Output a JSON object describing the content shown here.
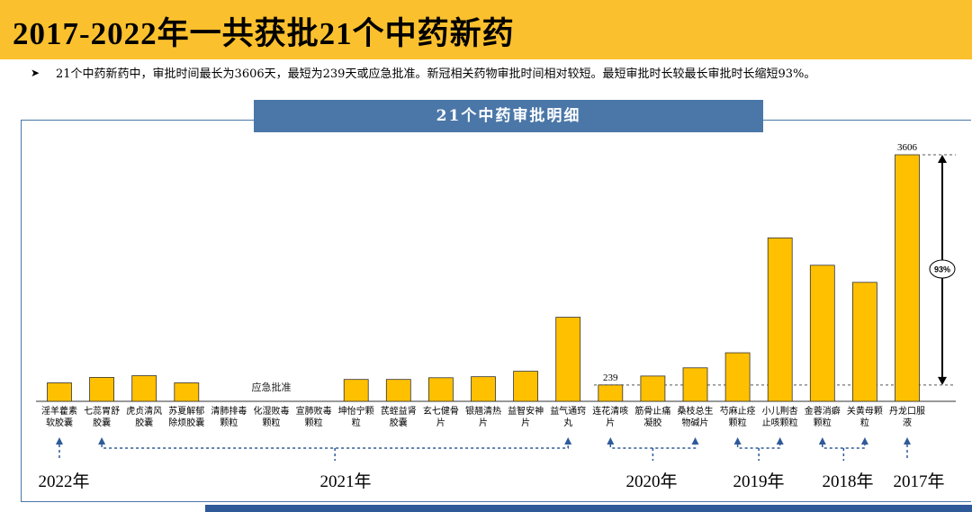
{
  "header": {
    "title": "2017-2022年一共获批21个中药新药"
  },
  "summary": {
    "bullet_icon": "arrow-bullet-icon",
    "text": "21个中药新药中，审批时间最长为3606天，最短为239天或应急批准。新冠相关药物审批时间相对较短。最短审批时长较最长审批时长缩短93%。"
  },
  "chart_title": "21个中药审批明细",
  "colors": {
    "bar": "#FFC000",
    "accent": "#4A77A8",
    "header": "#FBC02D",
    "bottom_bar": "#2E5A9A"
  },
  "chart_data": {
    "type": "bar",
    "title": "21个中药审批明细",
    "xlabel": "",
    "ylabel": "",
    "ylim": [
      0,
      3606
    ],
    "grid": false,
    "categories": [
      "淫羊藿素软胶囊",
      "七蕊胃舒胶囊",
      "虎贞清风胶囊",
      "苏夏解郁除烦胶囊",
      "清肺排毒颗粒",
      "化湿败毒颗粒",
      "宣肺败毒颗粒",
      "坤怡宁颗粒",
      "芪蛭益肾胶囊",
      "玄七健骨片",
      "银翘清热片",
      "益智安神片",
      "益气通窍丸",
      "连花清咳片",
      "筋骨止痛凝胶",
      "桑枝总生物碱片",
      "芍麻止痉颗粒",
      "小儿荆杏止咳颗粒",
      "金蓉消癖颗粒",
      "关黄母颗粒",
      "丹龙口服液"
    ],
    "values": [
      270,
      350,
      375,
      270,
      null,
      null,
      null,
      320,
      320,
      345,
      360,
      440,
      1230,
      239,
      370,
      490,
      710,
      2390,
      1990,
      1740,
      3606
    ],
    "value_labels": {
      "13": "239",
      "20": "3606"
    },
    "emergency_note": {
      "text": "应急批准",
      "indices": [
        4,
        5,
        6
      ]
    },
    "reference_line": {
      "value": 239,
      "style": "dashed"
    },
    "annotation": {
      "text": "93%",
      "from": 239,
      "to": 3606
    },
    "year_groups": [
      {
        "label": "2022年",
        "start": 0,
        "end": 0
      },
      {
        "label": "2021年",
        "start": 1,
        "end": 12
      },
      {
        "label": "2020年",
        "start": 13,
        "end": 15
      },
      {
        "label": "2019年",
        "start": 16,
        "end": 17
      },
      {
        "label": "2018年",
        "start": 18,
        "end": 19
      },
      {
        "label": "2017年",
        "start": 20,
        "end": 20
      }
    ]
  }
}
